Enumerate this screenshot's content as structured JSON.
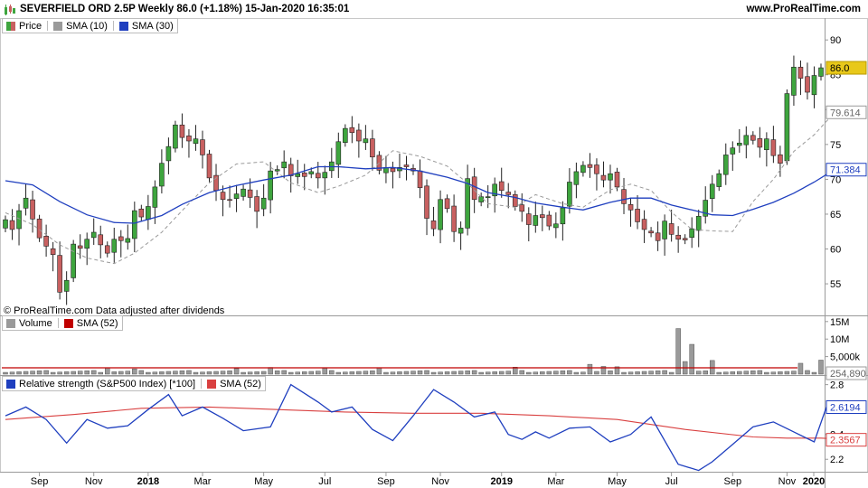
{
  "header": {
    "title": "SEVERFIELD ORD 2.5P Weekly 86.0 (+1.18%) 15-Jan-2020 16:35:01",
    "site": "www.ProRealTime.com"
  },
  "note": "© ProRealTime.com  Data adjusted after dividends",
  "colors": {
    "up": "#3ea53e",
    "down": "#c86060",
    "sma10": "#9a9a9a",
    "sma30": "#1f3fbf",
    "volume": "#9a9a9a",
    "vol_sma": "#c00000",
    "rs": "#1f3fbf",
    "rs_sma": "#d94040",
    "last_badge": "#e8c81a"
  },
  "chart_data": [
    {
      "type": "candlestick",
      "name": "price",
      "legend": [
        {
          "label": "Price",
          "swatch": "price-icon"
        },
        {
          "label": "SMA (10)",
          "color": "#9a9a9a"
        },
        {
          "label": "SMA (30)",
          "color": "#1f3fbf"
        }
      ],
      "y_ticks": [
        55,
        60,
        65,
        70,
        75,
        80,
        85,
        90
      ],
      "ylim": [
        50.6,
        92.1
      ],
      "x_ticks": [
        "Sep",
        "Nov",
        "2018",
        "Mar",
        "May",
        "Jul",
        "Sep",
        "Nov",
        "2019",
        "Mar",
        "May",
        "Jul",
        "Sep",
        "Nov",
        "2020"
      ],
      "x_tick_bold": [
        false,
        false,
        true,
        false,
        false,
        false,
        false,
        false,
        true,
        false,
        false,
        false,
        false,
        false,
        true
      ],
      "badges": [
        {
          "value": "86.0",
          "y": 86.0,
          "style": "last"
        },
        {
          "value": "79.614",
          "y": 79.614,
          "style": "sma10"
        },
        {
          "value": "71.384",
          "y": 71.384,
          "style": "sma30"
        }
      ],
      "closes": [
        64.2,
        62.8,
        65.5,
        67.3,
        64.3,
        61.6,
        60.4,
        59.2,
        53.8,
        55.5,
        60.7,
        60.1,
        61.4,
        62.4,
        60.6,
        59.4,
        61.4,
        61.2,
        61.5,
        65.5,
        64.6,
        66.1,
        68.9,
        72.3,
        74.7,
        77.8,
        76.0,
        75.5,
        75.8,
        73.5,
        70.2,
        68.4,
        67.1,
        67.0,
        67.9,
        68.6,
        67.4,
        65.4,
        67.3,
        71.2,
        71.4,
        72.5,
        70.5,
        70.8,
        70.4,
        71.1,
        70.2,
        71.0,
        72.5,
        75.4,
        77.3,
        76.7,
        75.5,
        75.8,
        73.2,
        71.3,
        71.7,
        71.1,
        71.7,
        71.8,
        71.2,
        68.8,
        64.4,
        62.9,
        67.1,
        65.8,
        62.5,
        63.0,
        70.1,
        67.1,
        67.5,
        67.5,
        69.3,
        68.4,
        67.8,
        66.1,
        65.4,
        63.5,
        64.8,
        64.5,
        63.3,
        63.6,
        65.9,
        69.6,
        71.1,
        72.0,
        71.7,
        70.8,
        69.9,
        70.8,
        68.9,
        66.5,
        65.6,
        63.9,
        62.8,
        62.3,
        61.2,
        64.0,
        62.1,
        61.4,
        61.3,
        62.9,
        64.7,
        67.0,
        69.3,
        70.8,
        73.5,
        74.5,
        75.2,
        76.3,
        75.6,
        74.6,
        75.8,
        73.4,
        72.3,
        82.3,
        86.1,
        84.5,
        82.5,
        84.9,
        86.0
      ],
      "series": [
        {
          "name": "SMA (10)",
          "x": [
            0,
            4,
            8,
            12,
            16,
            19,
            23,
            26,
            30,
            34,
            38,
            42,
            46,
            49,
            53,
            57,
            61,
            65,
            68,
            71,
            75,
            78,
            82,
            85,
            89,
            92,
            95,
            98,
            101,
            104,
            107,
            110,
            113,
            116,
            119,
            122
          ],
          "values": [
            65.2,
            63.5,
            60.6,
            58.7,
            57.9,
            59.4,
            62.4,
            65.5,
            69.5,
            72.2,
            72.5,
            69.5,
            68.1,
            69.0,
            70.6,
            74.1,
            73.3,
            71.9,
            69.4,
            66.5,
            66.0,
            67.8,
            66.5,
            66.0,
            68.5,
            69.3,
            68.4,
            65.3,
            62.8,
            62.6,
            62.5,
            66.8,
            70.0,
            74.0,
            76.4,
            79.6
          ]
        },
        {
          "name": "SMA (30)",
          "x": [
            0,
            4,
            8,
            12,
            16,
            19,
            23,
            26,
            30,
            34,
            38,
            42,
            46,
            49,
            53,
            57,
            61,
            65,
            68,
            71,
            75,
            78,
            82,
            85,
            89,
            92,
            95,
            98,
            101,
            104,
            107,
            110,
            113,
            116,
            119,
            122
          ],
          "values": [
            69.8,
            69.2,
            66.8,
            64.9,
            63.8,
            63.7,
            64.8,
            66.4,
            68.1,
            69.1,
            69.9,
            70.6,
            71.8,
            71.8,
            71.5,
            71.7,
            71.2,
            70.3,
            69.4,
            68.1,
            67.4,
            66.6,
            66.0,
            65.6,
            66.7,
            67.3,
            67.3,
            66.3,
            65.6,
            64.9,
            64.8,
            65.7,
            66.7,
            68.0,
            69.6,
            71.4
          ]
        }
      ]
    },
    {
      "type": "bar",
      "name": "volume",
      "legend": [
        {
          "label": "Volume",
          "color": "#9a9a9a"
        },
        {
          "label": "SMA (52)",
          "color": "#c00000"
        }
      ],
      "y_ticks": [
        "15M",
        "10M",
        "5,000k"
      ],
      "y_tick_values": [
        15000,
        10000,
        5000
      ],
      "unit": "k",
      "ylim": [
        0,
        16500
      ],
      "badge": {
        "value": "254,890",
        "y": 254.89
      },
      "spikes": [
        {
          "x": 15,
          "value": 1800
        },
        {
          "x": 19,
          "value": 1500
        },
        {
          "x": 34,
          "value": 1600
        },
        {
          "x": 39,
          "value": 1900
        },
        {
          "x": 47,
          "value": 1700
        },
        {
          "x": 55,
          "value": 1800
        },
        {
          "x": 75,
          "value": 2000
        },
        {
          "x": 86,
          "value": 2800
        },
        {
          "x": 88,
          "value": 2200
        },
        {
          "x": 90,
          "value": 2100
        },
        {
          "x": 99,
          "value": 13000
        },
        {
          "x": 100,
          "value": 3600
        },
        {
          "x": 101,
          "value": 8500
        },
        {
          "x": 104,
          "value": 3900
        },
        {
          "x": 117,
          "value": 3100
        },
        {
          "x": 120,
          "value": 4000
        },
        {
          "x": 121,
          "value": 10100
        }
      ],
      "base_value": 500,
      "sma_value": 1800
    },
    {
      "type": "line",
      "name": "relative-strength",
      "legend": [
        {
          "label": "Relative strength (S&P500 Index) [*100]",
          "color": "#1f3fbf"
        },
        {
          "label": "SMA (52)",
          "color": "#d94040"
        }
      ],
      "y_ticks": [
        2.2,
        2.4,
        2.6,
        2.8
      ],
      "ylim": [
        2.1,
        2.87
      ],
      "badges": [
        {
          "value": "2.6194",
          "y": 2.6194,
          "style": "rs"
        },
        {
          "value": "2.3567",
          "y": 2.3567,
          "style": "rs_sma"
        }
      ],
      "series": [
        {
          "name": "Relative strength (S&P500 Index) [*100]",
          "x": [
            0,
            3,
            6,
            9,
            12,
            15,
            18,
            21,
            24,
            26,
            29,
            32,
            35,
            39,
            42,
            46,
            48,
            51,
            54,
            57,
            60,
            63,
            66,
            69,
            72,
            74,
            76,
            78,
            80,
            83,
            86,
            89,
            92,
            95,
            99,
            102,
            104,
            107,
            110,
            113,
            116,
            119,
            121,
            123
          ],
          "values": [
            2.55,
            2.62,
            2.52,
            2.33,
            2.52,
            2.45,
            2.47,
            2.6,
            2.72,
            2.55,
            2.62,
            2.53,
            2.43,
            2.46,
            2.8,
            2.66,
            2.58,
            2.62,
            2.44,
            2.35,
            2.55,
            2.76,
            2.66,
            2.54,
            2.58,
            2.4,
            2.36,
            2.42,
            2.37,
            2.45,
            2.46,
            2.34,
            2.4,
            2.54,
            2.16,
            2.11,
            2.18,
            2.32,
            2.46,
            2.5,
            2.42,
            2.34,
            2.65,
            2.6
          ]
        },
        {
          "name": "SMA (52)",
          "x": [
            0,
            10,
            20,
            30,
            40,
            50,
            60,
            70,
            80,
            90,
            100,
            110,
            115,
            120,
            124
          ],
          "values": [
            2.52,
            2.56,
            2.61,
            2.62,
            2.6,
            2.58,
            2.57,
            2.57,
            2.55,
            2.52,
            2.44,
            2.38,
            2.37,
            2.37,
            2.36
          ]
        }
      ]
    }
  ]
}
